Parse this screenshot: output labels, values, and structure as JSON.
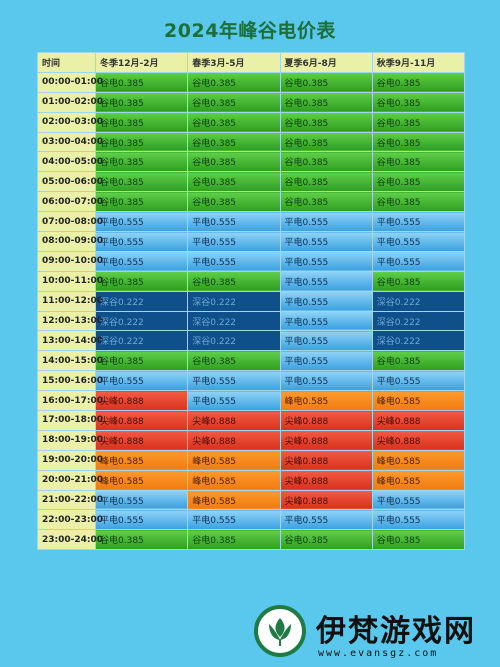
{
  "title": "2024年峰谷电价表",
  "colors": {
    "background": "#5ac8ec",
    "valley": "#3fb52c",
    "flat": "#5ab6ea",
    "deep_valley": "#0f4f8a",
    "peak": "#f58a1f",
    "sharp_peak": "#e2412c",
    "header": "#eaf1a6"
  },
  "table": {
    "headers": [
      "时间",
      "冬季12月-2月",
      "春季3月-5月",
      "夏季6月-8月",
      "秋季9月-11月"
    ],
    "rows": [
      {
        "time": "00:00-01:00",
        "cells": [
          "谷电0.385",
          "谷电0.385",
          "谷电0.385",
          "谷电0.385"
        ],
        "types": [
          "valley",
          "valley",
          "valley",
          "valley"
        ]
      },
      {
        "time": "01:00-02:00",
        "cells": [
          "谷电0.385",
          "谷电0.385",
          "谷电0.385",
          "谷电0.385"
        ],
        "types": [
          "valley",
          "valley",
          "valley",
          "valley"
        ]
      },
      {
        "time": "02:00-03:00",
        "cells": [
          "谷电0.385",
          "谷电0.385",
          "谷电0.385",
          "谷电0.385"
        ],
        "types": [
          "valley",
          "valley",
          "valley",
          "valley"
        ]
      },
      {
        "time": "03:00-04:00",
        "cells": [
          "谷电0.385",
          "谷电0.385",
          "谷电0.385",
          "谷电0.385"
        ],
        "types": [
          "valley",
          "valley",
          "valley",
          "valley"
        ]
      },
      {
        "time": "04:00-05:00",
        "cells": [
          "谷电0.385",
          "谷电0.385",
          "谷电0.385",
          "谷电0.385"
        ],
        "types": [
          "valley",
          "valley",
          "valley",
          "valley"
        ]
      },
      {
        "time": "05:00-06:00",
        "cells": [
          "谷电0.385",
          "谷电0.385",
          "谷电0.385",
          "谷电0.385"
        ],
        "types": [
          "valley",
          "valley",
          "valley",
          "valley"
        ]
      },
      {
        "time": "06:00-07:00",
        "cells": [
          "谷电0.385",
          "谷电0.385",
          "谷电0.385",
          "谷电0.385"
        ],
        "types": [
          "valley",
          "valley",
          "valley",
          "valley"
        ]
      },
      {
        "time": "07:00-08:00",
        "cells": [
          "平电0.555",
          "平电0.555",
          "平电0.555",
          "平电0.555"
        ],
        "types": [
          "flat",
          "flat",
          "flat",
          "flat"
        ]
      },
      {
        "time": "08:00-09:00",
        "cells": [
          "平电0.555",
          "平电0.555",
          "平电0.555",
          "平电0.555"
        ],
        "types": [
          "flat",
          "flat",
          "flat",
          "flat"
        ]
      },
      {
        "time": "09:00-10:00",
        "cells": [
          "平电0.555",
          "平电0.555",
          "平电0.555",
          "平电0.555"
        ],
        "types": [
          "flat",
          "flat",
          "flat",
          "flat"
        ]
      },
      {
        "time": "10:00-11:00",
        "cells": [
          "谷电0.385",
          "谷电0.385",
          "平电0.555",
          "谷电0.385"
        ],
        "types": [
          "valley",
          "valley",
          "flat",
          "valley"
        ]
      },
      {
        "time": "11:00-12:00",
        "cells": [
          "深谷0.222",
          "深谷0.222",
          "平电0.555",
          "深谷0.222"
        ],
        "types": [
          "deep",
          "deep",
          "flat",
          "deep"
        ]
      },
      {
        "time": "12:00-13:00",
        "cells": [
          "深谷0.222",
          "深谷0.222",
          "平电0.555",
          "深谷0.222"
        ],
        "types": [
          "deep",
          "deep",
          "flat",
          "deep"
        ]
      },
      {
        "time": "13:00-14:00",
        "cells": [
          "深谷0.222",
          "深谷0.222",
          "平电0.555",
          "深谷0.222"
        ],
        "types": [
          "deep",
          "deep",
          "flat",
          "deep"
        ]
      },
      {
        "time": "14:00-15:00",
        "cells": [
          "谷电0.385",
          "谷电0.385",
          "平电0.555",
          "谷电0.385"
        ],
        "types": [
          "valley",
          "valley",
          "flat",
          "valley"
        ]
      },
      {
        "time": "15:00-16:00",
        "cells": [
          "平电0.555",
          "平电0.555",
          "平电0.555",
          "平电0.555"
        ],
        "types": [
          "flat",
          "flat",
          "flat",
          "flat"
        ]
      },
      {
        "time": "16:00-17:00",
        "cells": [
          "尖峰0.888",
          "平电0.555",
          "峰电0.585",
          "峰电0.585"
        ],
        "types": [
          "sharp",
          "flat",
          "peak",
          "peak"
        ]
      },
      {
        "time": "17:00-18:00",
        "cells": [
          "尖峰0.888",
          "尖峰0.888",
          "尖峰0.888",
          "尖峰0.888"
        ],
        "types": [
          "sharp",
          "sharp",
          "sharp",
          "sharp"
        ]
      },
      {
        "time": "18:00-19:00",
        "cells": [
          "尖峰0.888",
          "尖峰0.888",
          "尖峰0.888",
          "尖峰0.888"
        ],
        "types": [
          "sharp",
          "sharp",
          "sharp",
          "sharp"
        ]
      },
      {
        "time": "19:00-20:00",
        "cells": [
          "峰电0.585",
          "峰电0.585",
          "尖峰0.888",
          "峰电0.585"
        ],
        "types": [
          "peak",
          "peak",
          "sharp",
          "peak"
        ]
      },
      {
        "time": "20:00-21:00",
        "cells": [
          "峰电0.585",
          "峰电0.585",
          "尖峰0.888",
          "峰电0.585"
        ],
        "types": [
          "peak",
          "peak",
          "sharp",
          "peak"
        ]
      },
      {
        "time": "21:00-22:00",
        "cells": [
          "平电0.555",
          "峰电0.585",
          "尖峰0.888",
          "平电0.555"
        ],
        "types": [
          "flat",
          "peak",
          "sharp",
          "flat"
        ]
      },
      {
        "time": "22:00-23:00",
        "cells": [
          "平电0.555",
          "平电0.555",
          "平电0.555",
          "平电0.555"
        ],
        "types": [
          "flat",
          "flat",
          "flat",
          "flat"
        ]
      },
      {
        "time": "23:00-24:00",
        "cells": [
          "谷电0.385",
          "谷电0.385",
          "谷电0.385",
          "谷电0.385"
        ],
        "types": [
          "valley",
          "valley",
          "valley",
          "valley"
        ]
      }
    ]
  },
  "watermark": {
    "brand": "伊梵游戏网",
    "url": "www.evansgz.com",
    "logo_icon": "tulip-logo-icon"
  }
}
